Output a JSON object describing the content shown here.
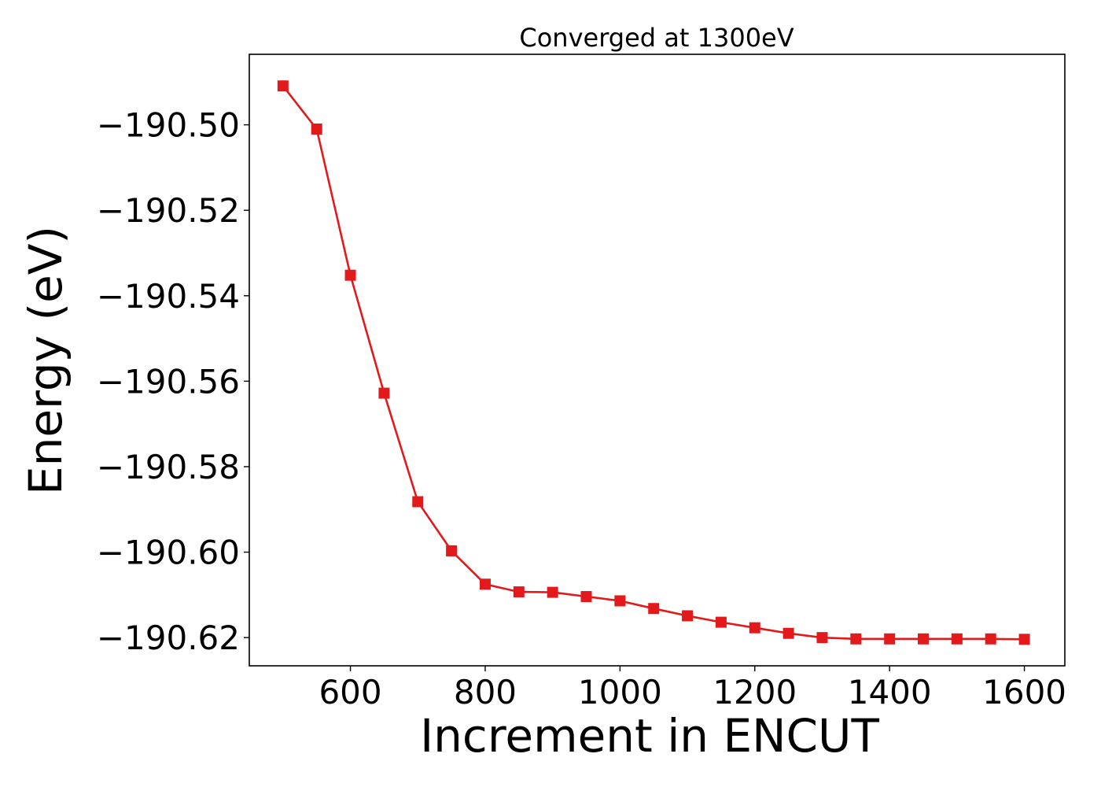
{
  "chart_data": {
    "type": "line",
    "title": "Converged at 1300eV",
    "xlabel": "Increment in ENCUT",
    "ylabel": "Energy (eV)",
    "xlim": [
      450,
      1660
    ],
    "ylim": [
      -190.6266,
      -190.4835
    ],
    "xticks": [
      600,
      800,
      1000,
      1200,
      1400,
      1600
    ],
    "xtick_labels": [
      "600",
      "800",
      "1000",
      "1200",
      "1400",
      "1600"
    ],
    "yticks": [
      -190.5,
      -190.52,
      -190.54,
      -190.56,
      -190.58,
      -190.6,
      -190.62
    ],
    "ytick_labels": [
      "−190.50",
      "−190.52",
      "−190.54",
      "−190.56",
      "−190.58",
      "−190.60",
      "−190.62"
    ],
    "grid": false,
    "legend": "none",
    "series": [
      {
        "color": "#e31a1c",
        "marker": "square",
        "x": [
          500,
          550,
          600,
          650,
          700,
          750,
          800,
          850,
          900,
          950,
          1000,
          1050,
          1100,
          1150,
          1200,
          1250,
          1300,
          1350,
          1400,
          1450,
          1500,
          1550,
          1600
        ],
        "y": [
          -190.4909,
          -190.501,
          -190.5352,
          -190.5628,
          -190.5882,
          -190.5997,
          -190.6075,
          -190.6093,
          -190.6094,
          -190.6104,
          -190.6114,
          -190.6132,
          -190.6149,
          -190.6164,
          -190.6177,
          -190.619,
          -190.62,
          -190.6203,
          -190.6203,
          -190.6203,
          -190.6203,
          -190.6203,
          -190.6204
        ]
      }
    ]
  }
}
